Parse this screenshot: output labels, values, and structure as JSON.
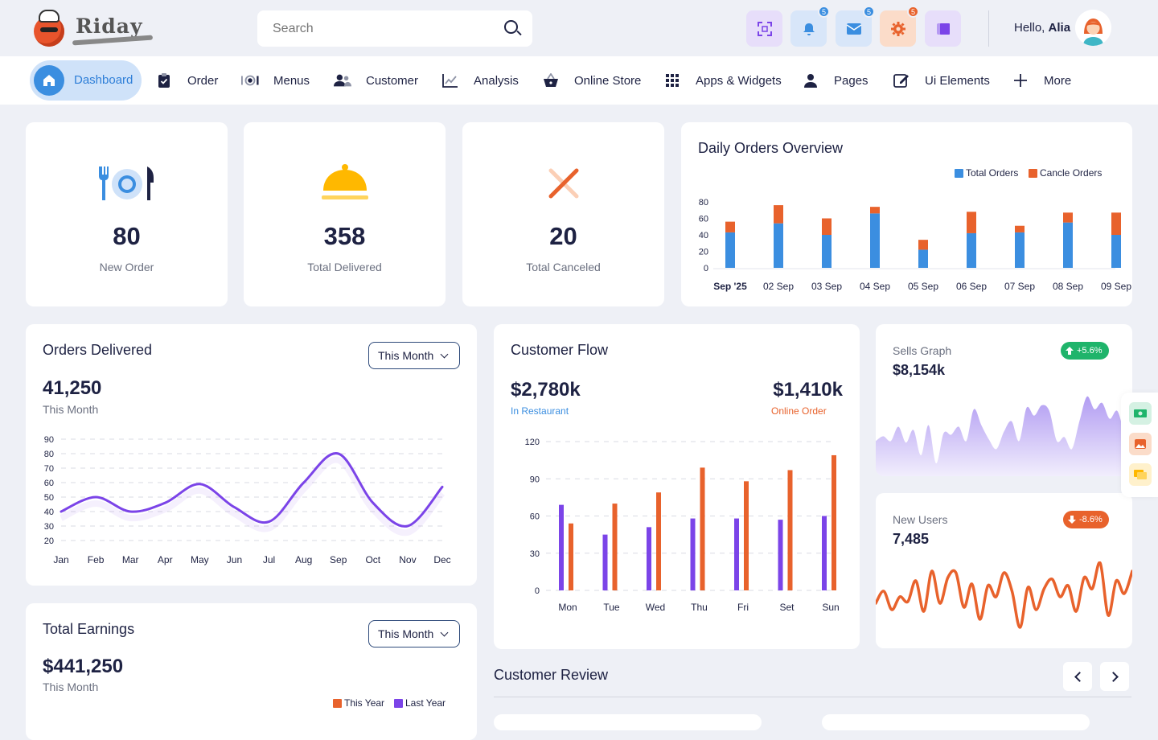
{
  "brand": {
    "name": "Riday"
  },
  "search": {
    "placeholder": "Search"
  },
  "header": {
    "actions": [
      {
        "name": "fullscreen",
        "badge": ""
      },
      {
        "name": "notifications",
        "badge": "5"
      },
      {
        "name": "messages",
        "badge": "5"
      },
      {
        "name": "settings",
        "badge": "5"
      },
      {
        "name": "layout",
        "badge": ""
      }
    ],
    "greeting": "Hello,",
    "user_name": "Alia"
  },
  "nav": {
    "items": [
      {
        "label": "Dashboard",
        "icon": "home-icon"
      },
      {
        "label": "Order",
        "icon": "clipboard-icon"
      },
      {
        "label": "Menus",
        "icon": "dish-icon"
      },
      {
        "label": "Customer",
        "icon": "users-icon"
      },
      {
        "label": "Analysis",
        "icon": "chart-icon"
      },
      {
        "label": "Online Store",
        "icon": "basket-icon"
      },
      {
        "label": "Apps & Widgets",
        "icon": "grid-icon"
      },
      {
        "label": "Pages",
        "icon": "user-icon"
      },
      {
        "label": "Ui Elements",
        "icon": "edit-icon"
      },
      {
        "label": "More",
        "icon": "plus-icon"
      }
    ]
  },
  "stats": [
    {
      "value": "80",
      "label": "New Order"
    },
    {
      "value": "358",
      "label": "Total Delivered"
    },
    {
      "value": "20",
      "label": "Total Canceled"
    }
  ],
  "daily_orders": {
    "title": "Daily Orders Overview",
    "legend": [
      "Total Orders",
      "Cancle Orders"
    ],
    "colors": {
      "total": "#3b8ee0",
      "cancel": "#e8622c"
    }
  },
  "orders_delivered": {
    "title": "Orders Delivered",
    "filter": "This Month",
    "value": "41,250",
    "caption": "This Month"
  },
  "customer_flow": {
    "title": "Customer Flow",
    "left_value": "$2,780k",
    "left_caption": "In Restaurant",
    "right_value": "$1,410k",
    "right_caption": "Online Order"
  },
  "sells_graph": {
    "title": "Sells Graph",
    "value": "$8,154k",
    "change": "+5.6%"
  },
  "new_users": {
    "title": "New Users",
    "value": "7,485",
    "change": "-8.6%"
  },
  "total_earnings": {
    "title": "Total Earnings",
    "filter": "This Month",
    "value": "$441,250",
    "caption": "This Month",
    "legend": [
      "This Year",
      "Last Year"
    ]
  },
  "customer_review": {
    "title": "Customer Review"
  },
  "chart_data": [
    {
      "type": "bar",
      "title": "Daily Orders Overview",
      "categories": [
        "Sep '25",
        "02 Sep",
        "03 Sep",
        "04 Sep",
        "05 Sep",
        "06 Sep",
        "07 Sep",
        "08 Sep",
        "09 Sep"
      ],
      "series": [
        {
          "name": "Total Orders",
          "values": [
            43,
            54,
            40,
            66,
            22,
            42,
            43,
            55,
            40
          ]
        },
        {
          "name": "Cancle Orders",
          "values": [
            13,
            22,
            20,
            8,
            12,
            26,
            8,
            12,
            27
          ]
        }
      ],
      "stacked": true,
      "ylim": [
        0,
        80
      ],
      "yticks": [
        0,
        20,
        40,
        60,
        80
      ],
      "legend": "top-right"
    },
    {
      "type": "line",
      "title": "Orders Delivered",
      "categories": [
        "Jan",
        "Feb",
        "Mar",
        "Apr",
        "May",
        "Jun",
        "Jul",
        "Aug",
        "Sep",
        "Oct",
        "Nov",
        "Dec"
      ],
      "values": [
        40,
        50,
        40,
        46,
        59,
        43,
        33,
        60,
        80,
        46,
        30,
        57
      ],
      "ylim": [
        20,
        90
      ],
      "yticks": [
        20,
        30,
        40,
        50,
        60,
        70,
        80,
        90
      ],
      "grid": true
    },
    {
      "type": "bar",
      "title": "Customer Flow",
      "categories": [
        "Mon",
        "Tue",
        "Wed",
        "Thu",
        "Fri",
        "Set",
        "Sun"
      ],
      "series": [
        {
          "values": [
            69,
            45,
            51,
            58,
            58,
            57,
            60
          ]
        },
        {
          "values": [
            54,
            70,
            79,
            99,
            88,
            97,
            109
          ]
        }
      ],
      "colors": [
        "#7b44e8",
        "#e8622c"
      ],
      "ylim": [
        0,
        120
      ],
      "yticks": [
        0,
        30,
        60,
        90,
        120
      ],
      "grid": true
    },
    {
      "type": "area",
      "title": "Sells Graph",
      "values": [
        30,
        36,
        30,
        48,
        28,
        44,
        12,
        50,
        2,
        40,
        38,
        48,
        30,
        70,
        50,
        32,
        20,
        42,
        55,
        30,
        72,
        62,
        75,
        68,
        30,
        35,
        20,
        55,
        86,
        70,
        78,
        58,
        68,
        40,
        30
      ],
      "color": "#a48bf0"
    },
    {
      "type": "line",
      "title": "New Users",
      "values": [
        40,
        55,
        32,
        48,
        42,
        68,
        30,
        80,
        40,
        72,
        78,
        35,
        64,
        20,
        62,
        48,
        78,
        55,
        10,
        60,
        32,
        58,
        70,
        48,
        62,
        30,
        72,
        58,
        90,
        25,
        68,
        52,
        80
      ],
      "color": "#e8622c"
    }
  ]
}
